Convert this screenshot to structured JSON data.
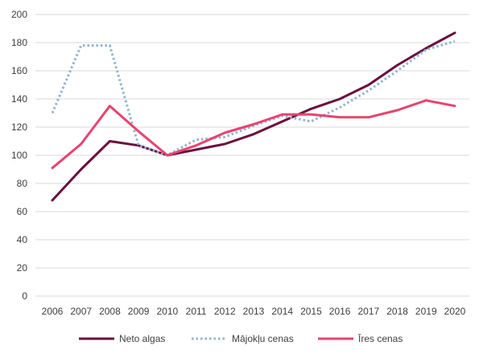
{
  "chart_data": {
    "type": "line",
    "title": "",
    "xlabel": "",
    "ylabel": "",
    "ylim": [
      0,
      200
    ],
    "y_ticks": [
      0,
      20,
      40,
      60,
      80,
      100,
      120,
      140,
      160,
      180,
      200
    ],
    "grid": "horizontal",
    "legend_position": "bottom",
    "x": [
      "2006",
      "2007",
      "2008",
      "2009",
      "2010",
      "2011",
      "2012",
      "2013",
      "2014",
      "2015",
      "2016",
      "2017",
      "2018",
      "2019",
      "2020"
    ],
    "series": [
      {
        "name": "Neto algas",
        "color": "#6b0f3f",
        "dash": "solid",
        "values": [
          68,
          90,
          110,
          107,
          100,
          104,
          108,
          115,
          124,
          133,
          140,
          150,
          164,
          176,
          187
        ]
      },
      {
        "name": "Mājokļu cenas",
        "color": "#8fb4d0",
        "dash": "dotted",
        "values": [
          130,
          178,
          178,
          107,
          100,
          111,
          113,
          121,
          128,
          124,
          134,
          146,
          160,
          175,
          181
        ]
      },
      {
        "name": "Īres cenas",
        "color": "#e8436f",
        "dash": "solid",
        "values": [
          91,
          108,
          135,
          117,
          100,
          107,
          116,
          122,
          129,
          129,
          127,
          127,
          132,
          139,
          135
        ]
      }
    ]
  }
}
